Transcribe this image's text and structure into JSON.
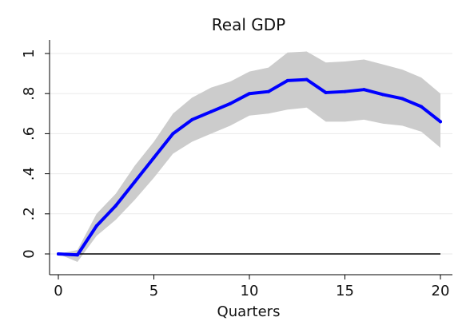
{
  "chart_data": {
    "type": "line",
    "title": "Real GDP",
    "xlabel": "Quarters",
    "ylabel": "",
    "xlim": [
      0,
      20
    ],
    "ylim": [
      -0.1,
      1.05
    ],
    "xticks": [
      0,
      5,
      10,
      15,
      20
    ],
    "xtick_labels": [
      "0",
      "5",
      "10",
      "15",
      "20"
    ],
    "yticks": [
      0,
      0.2,
      0.4,
      0.6,
      0.8,
      1.0
    ],
    "ytick_labels": [
      "0",
      ".2",
      ".4",
      ".6",
      ".8",
      "1"
    ],
    "grid": true,
    "zero_line": 0,
    "x": [
      0,
      1,
      2,
      3,
      4,
      5,
      6,
      7,
      8,
      9,
      10,
      11,
      12,
      13,
      14,
      15,
      16,
      17,
      18,
      19,
      20
    ],
    "series": [
      {
        "values": [
          0,
          -0.005,
          0.14,
          0.24,
          0.36,
          0.48,
          0.6,
          0.67,
          0.71,
          0.75,
          0.8,
          0.81,
          0.865,
          0.87,
          0.805,
          0.81,
          0.82,
          0.795,
          0.775,
          0.735,
          0.66
        ],
        "lower": [
          0,
          -0.04,
          0.09,
          0.17,
          0.27,
          0.38,
          0.5,
          0.56,
          0.6,
          0.64,
          0.69,
          0.7,
          0.72,
          0.73,
          0.66,
          0.66,
          0.67,
          0.65,
          0.64,
          0.61,
          0.53
        ],
        "upper": [
          0,
          0.02,
          0.2,
          0.3,
          0.44,
          0.56,
          0.7,
          0.78,
          0.83,
          0.86,
          0.91,
          0.93,
          1.005,
          1.01,
          0.955,
          0.96,
          0.97,
          0.945,
          0.92,
          0.88,
          0.8
        ]
      }
    ],
    "colors": {
      "line": "#0000ff",
      "band": "#cccccc",
      "zero_line": "#000000",
      "grid": "#eaeaea",
      "axis": "#000000"
    }
  }
}
